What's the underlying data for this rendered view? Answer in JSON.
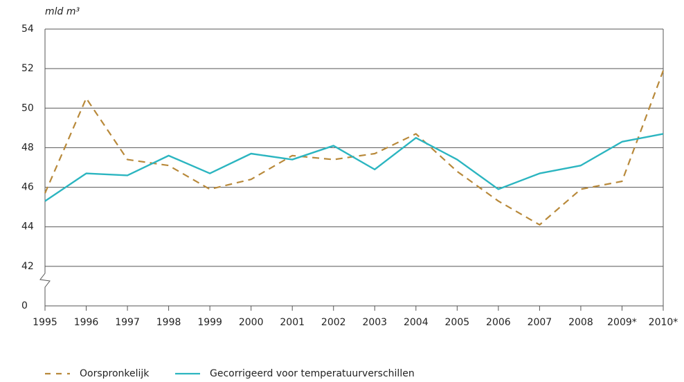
{
  "chart_data": {
    "type": "line",
    "y_axis_label": "mld m³",
    "categories": [
      "1995",
      "1996",
      "1997",
      "1998",
      "1999",
      "2000",
      "2001",
      "2002",
      "2003",
      "2004",
      "2005",
      "2006",
      "2007",
      "2008",
      "2009*",
      "2010*"
    ],
    "series": [
      {
        "name": "Oorspronkelijk",
        "color": "#b8893a",
        "dash": true,
        "values": [
          45.7,
          50.5,
          47.4,
          47.1,
          45.9,
          46.4,
          47.6,
          47.4,
          47.7,
          48.7,
          46.8,
          45.3,
          44.1,
          45.9,
          46.3,
          51.9
        ]
      },
      {
        "name": "Gecorrigeerd voor temperatuurverschillen",
        "color": "#2bb5c0",
        "dash": false,
        "values": [
          45.3,
          46.7,
          46.6,
          47.6,
          46.7,
          47.7,
          47.4,
          48.1,
          46.9,
          48.5,
          47.4,
          45.9,
          46.7,
          47.1,
          48.3,
          48.7
        ]
      }
    ],
    "ylim": [
      0,
      54
    ],
    "axis_break": [
      0,
      42
    ],
    "yticks": [
      0,
      42,
      44,
      46,
      48,
      50,
      52,
      54
    ],
    "grid": true
  }
}
